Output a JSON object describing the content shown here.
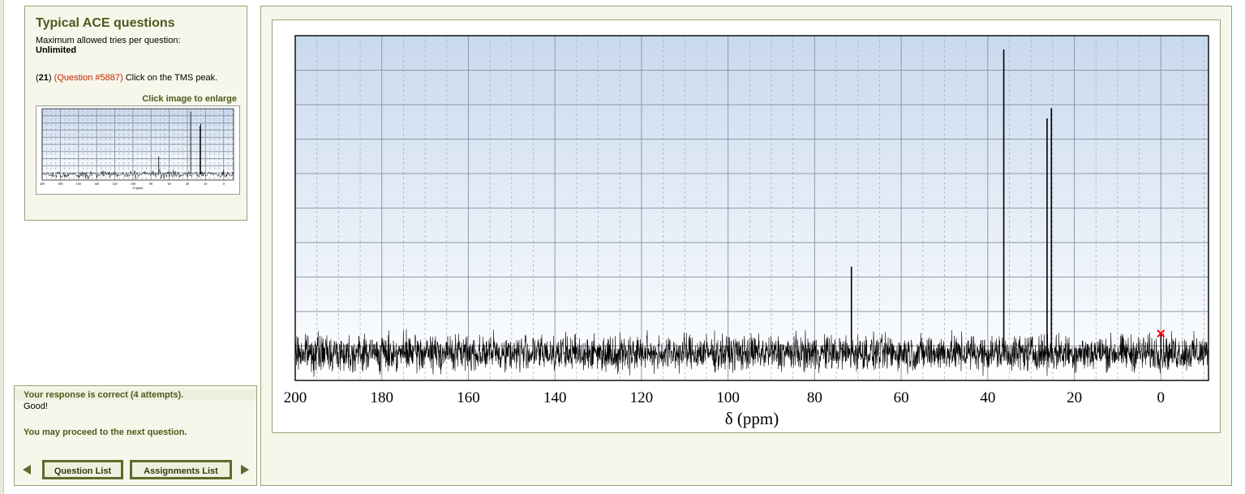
{
  "question_panel": {
    "title": "Typical ACE questions",
    "tries_label": "Maximum allowed tries per question:",
    "tries_value": "Unlimited",
    "question_index_open": "(",
    "question_index": "21",
    "question_index_close": ")",
    "question_number": "(Question #5887)",
    "question_text": "Click on the TMS peak.",
    "enlarge_link": "Click image to enlarge"
  },
  "feedback": {
    "status": "Your response is correct (4 attempts).",
    "message": "Good!",
    "proceed": "You may proceed to the next question.",
    "question_list_button": "Question List",
    "assignments_list_button": "Assignments List"
  },
  "colors": {
    "accent": "#4b5a1e",
    "question_number": "#cc2200",
    "marker": "#ff0000",
    "plot_bg_top": "#c9d9ee",
    "plot_bg_bottom": "#ffffff"
  },
  "chart_data": {
    "type": "line",
    "xlabel": "δ (ppm)",
    "xlim": [
      200,
      -11
    ],
    "x_ticks": [
      200,
      180,
      160,
      140,
      120,
      100,
      80,
      60,
      40,
      20,
      0
    ],
    "tick_labels": [
      "200",
      "180",
      "160",
      "140",
      "120",
      "100",
      "80",
      "60",
      "40",
      "20",
      "0"
    ],
    "grid": true,
    "ylim": [
      0,
      100
    ],
    "baseline_level": 8,
    "peaks": [
      {
        "ppm": 71.5,
        "height": 33
      },
      {
        "ppm": 36.3,
        "height": 96
      },
      {
        "ppm": 26.3,
        "height": 76
      },
      {
        "ppm": 25.3,
        "height": 79
      },
      {
        "ppm": 0.0,
        "height": 14
      }
    ],
    "selected_marker": {
      "ppm": 0.0,
      "level": 14,
      "symbol": "×"
    }
  }
}
